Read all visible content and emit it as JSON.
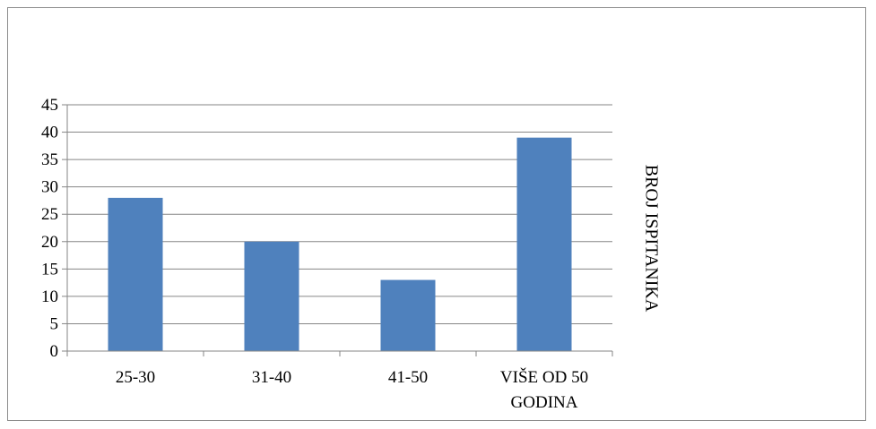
{
  "chart_data": {
    "type": "bar",
    "categories": [
      [
        "25-30"
      ],
      [
        "31-40"
      ],
      [
        "41-50"
      ],
      [
        "VIŠE OD 50",
        "GODINA"
      ]
    ],
    "values": [
      28,
      20,
      13,
      39
    ],
    "ylim": [
      0,
      45
    ],
    "ytick_step": 5,
    "ytick_labels": [
      "0",
      "5",
      "10",
      "15",
      "20",
      "25",
      "30",
      "35",
      "40",
      "45"
    ],
    "series": [
      {
        "name": "BROJ ISPITANIKA",
        "values": [
          28,
          20,
          13,
          39
        ]
      }
    ],
    "legend_position": "right",
    "grid": true,
    "bar_color": "#4f81bd",
    "grid_color": "#868686"
  }
}
